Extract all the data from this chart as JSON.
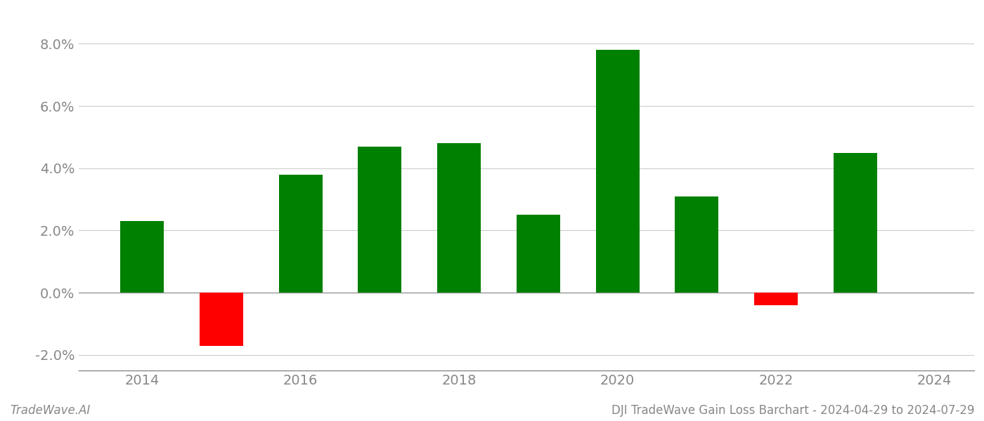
{
  "years": [
    2014,
    2015,
    2016,
    2017,
    2018,
    2019,
    2020,
    2021,
    2022,
    2023
  ],
  "values": [
    0.023,
    -0.017,
    0.038,
    0.047,
    0.048,
    0.025,
    0.078,
    0.031,
    -0.004,
    0.045
  ],
  "green_color": "#008000",
  "red_color": "#ff0000",
  "title": "DJI TradeWave Gain Loss Barchart - 2024-04-29 to 2024-07-29",
  "watermark": "TradeWave.AI",
  "ylim": [
    -0.025,
    0.09
  ],
  "yticks": [
    -0.02,
    0.0,
    0.02,
    0.04,
    0.06,
    0.08
  ],
  "background_color": "#ffffff",
  "grid_color": "#cccccc",
  "bar_width": 0.55,
  "title_fontsize": 12,
  "watermark_fontsize": 12,
  "tick_fontsize": 14,
  "axis_label_color": "#888888"
}
